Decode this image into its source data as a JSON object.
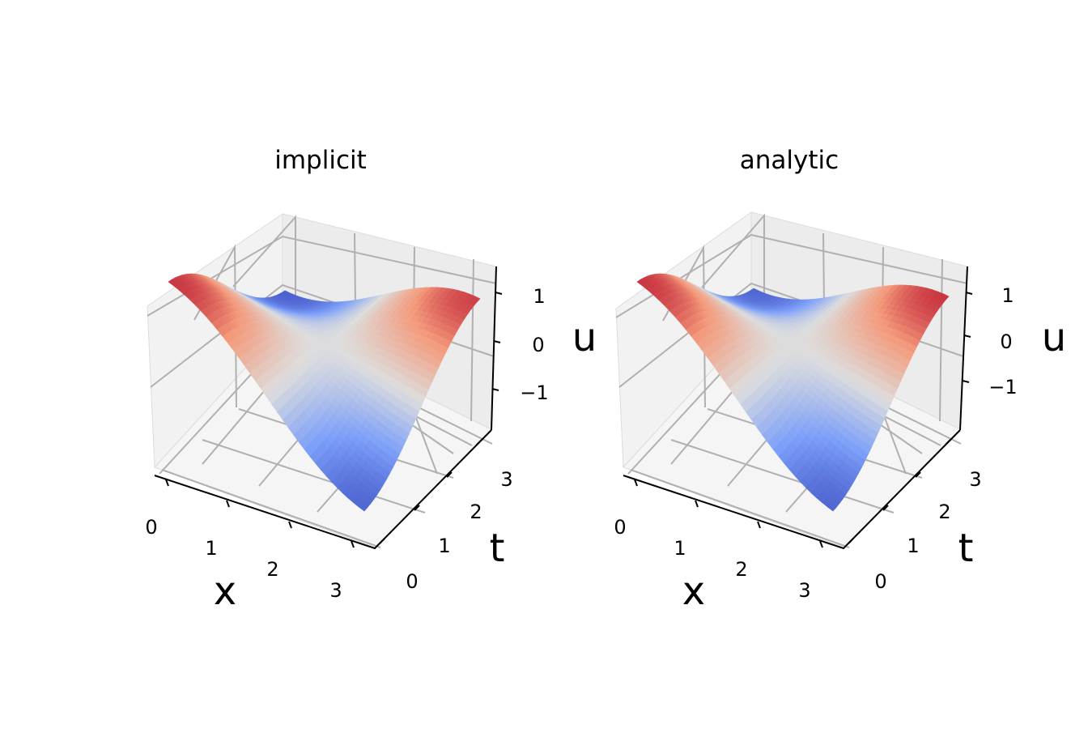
{
  "chart_data": [
    {
      "type": "surface",
      "title": "implicit",
      "xlabel": "x",
      "ylabel": "t",
      "zlabel": "u",
      "x_ticks": [
        "0",
        "1",
        "2",
        "3"
      ],
      "t_ticks": [
        "0",
        "1",
        "2",
        "3"
      ],
      "u_ticks": [
        "1",
        "0",
        "−1"
      ],
      "xlim": [
        0,
        3.14
      ],
      "tlim": [
        0,
        3.14
      ],
      "zlim": [
        -1.8,
        1.2
      ],
      "function": "u(x,t) = cos(t) * cos(x) - 0.05 * (t/pi)^2",
      "colormap": "coolwarm",
      "grid": true
    },
    {
      "type": "surface",
      "title": "analytic",
      "xlabel": "x",
      "ylabel": "t",
      "zlabel": "u",
      "x_ticks": [
        "0",
        "1",
        "2",
        "3"
      ],
      "t_ticks": [
        "0",
        "1",
        "2",
        "3"
      ],
      "u_ticks": [
        "1",
        "0",
        "−1"
      ],
      "xlim": [
        0,
        3.14
      ],
      "tlim": [
        0,
        3.14
      ],
      "zlim": [
        -1.8,
        1.2
      ],
      "function": "u(x,t) = cos(t) * cos(x)",
      "colormap": "coolwarm",
      "grid": true
    }
  ]
}
